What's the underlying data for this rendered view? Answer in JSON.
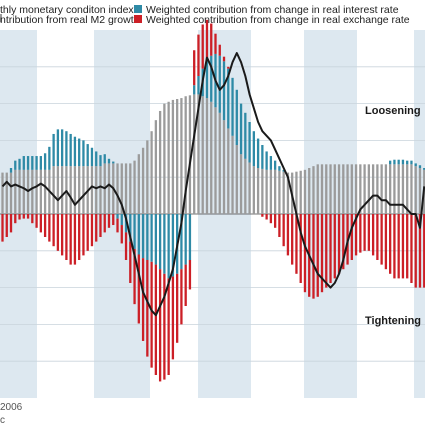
{
  "chart_data": {
    "type": "bar",
    "legend": [
      {
        "label": "thly monetary conditon index",
        "swatch": "line",
        "color": "#1a1a1a"
      },
      {
        "label": "ntribution from real M2 growth",
        "swatch": "box",
        "color": "#9b9b9b"
      },
      {
        "label": "Weighted contribution from change in real interest rate",
        "swatch": "box",
        "color": "#2e8aa6"
      },
      {
        "label": "Weighted contribution from change in real exchange rate",
        "swatch": "box",
        "color": "#cc1f26"
      }
    ],
    "annotations": {
      "loosening": "Loosening",
      "tightening": "Tightening"
    },
    "x_ticks": [
      "2006",
      "c"
    ],
    "bands_shaded": [
      true,
      false,
      true,
      false,
      true,
      false,
      true,
      false,
      true,
      false
    ],
    "ylim": [
      -16,
      18
    ],
    "grid": true,
    "colors": {
      "m2": "#9b9b9b",
      "interest": "#2e8aa6",
      "exchange": "#cc1f26",
      "index": "#1a1a1a",
      "band": "#dde8f0",
      "grid": "#c9d4dc"
    },
    "series": [
      {
        "key": "m2",
        "values": [
          4.5,
          4.5,
          4.5,
          4.8,
          4.8,
          4.8,
          4.8,
          4.8,
          4.8,
          4.8,
          4.8,
          4.8,
          5.2,
          5.2,
          5.2,
          5.2,
          5.2,
          5.2,
          5.2,
          5.2,
          5.2,
          5.2,
          5.2,
          5.2,
          5.5,
          5.5,
          5.5,
          5.5,
          5.5,
          5.5,
          5.5,
          5.8,
          6.5,
          7.2,
          8.0,
          9.0,
          10.2,
          11.2,
          12.0,
          12.2,
          12.4,
          12.5,
          12.6,
          12.8,
          12.9,
          13.0,
          13.0,
          12.8,
          12.6,
          12.2,
          11.6,
          11.0,
          10.2,
          9.3,
          8.5,
          7.5,
          6.5,
          6.0,
          5.6,
          5.2,
          5.0,
          4.9,
          4.8,
          4.8,
          4.8,
          4.7,
          4.6,
          4.5,
          4.5,
          4.6,
          4.7,
          4.8,
          5.0,
          5.2,
          5.4,
          5.4,
          5.4,
          5.4,
          5.4,
          5.4,
          5.4,
          5.4,
          5.4,
          5.4,
          5.4,
          5.4,
          5.4,
          5.4,
          5.4,
          5.4,
          5.4,
          5.4,
          5.4,
          5.4,
          5.4,
          5.4,
          5.4,
          5.2,
          5.0,
          4.8
        ]
      },
      {
        "key": "interest",
        "values": [
          0,
          0,
          0.5,
          1.0,
          1.2,
          1.5,
          1.5,
          1.5,
          1.5,
          1.5,
          1.8,
          2.5,
          3.5,
          4.0,
          4.0,
          3.8,
          3.5,
          3.2,
          3.0,
          2.8,
          2.4,
          2.0,
          1.6,
          1.2,
          1.0,
          0.5,
          0.2,
          -0.5,
          -1.2,
          -2.0,
          -3.0,
          -3.8,
          -4.4,
          -4.8,
          -5.0,
          -5.2,
          -5.5,
          -6.0,
          -6.5,
          -7.0,
          -6.8,
          -6.5,
          -6.0,
          -5.5,
          -5.0,
          1.0,
          2.0,
          3.0,
          4.0,
          5.0,
          5.8,
          6.2,
          6.4,
          6.5,
          6.3,
          6.0,
          5.5,
          5.0,
          4.4,
          3.8,
          3.2,
          2.6,
          2.0,
          1.5,
          1.0,
          0.5,
          0.2,
          0,
          0,
          0,
          0,
          0,
          0,
          0,
          0,
          0,
          0,
          0,
          0,
          0,
          0,
          0,
          0,
          0,
          0,
          0,
          0,
          0,
          0,
          0,
          0,
          0.4,
          0.5,
          0.5,
          0.5,
          0.4,
          0.4,
          0.3,
          0.3,
          0.2
        ]
      },
      {
        "key": "exchange",
        "values": [
          -3.0,
          -2.5,
          -2.0,
          -1.0,
          -0.6,
          -0.5,
          -0.5,
          -1.0,
          -1.5,
          -2.0,
          -2.5,
          -3.0,
          -3.5,
          -4.0,
          -4.5,
          -5.0,
          -5.5,
          -5.5,
          -5.0,
          -4.5,
          -4.0,
          -3.5,
          -3.0,
          -2.5,
          -2.0,
          -1.5,
          -1.2,
          -1.5,
          -2.0,
          -3.0,
          -4.5,
          -6.0,
          -7.5,
          -9.0,
          -10.5,
          -11.5,
          -12.0,
          -12.2,
          -11.5,
          -10.5,
          -9.0,
          -7.5,
          -6.0,
          -4.5,
          -3.2,
          3.8,
          4.5,
          4.8,
          4.5,
          3.5,
          2.2,
          1.2,
          0.5,
          0.2,
          0,
          0,
          0,
          0,
          0,
          0,
          0,
          -0.3,
          -0.6,
          -1.0,
          -1.5,
          -2.5,
          -3.5,
          -4.5,
          -5.5,
          -6.5,
          -7.5,
          -8.5,
          -9.0,
          -9.2,
          -9.0,
          -8.5,
          -8.0,
          -7.5,
          -7.0,
          -6.5,
          -6.0,
          -5.5,
          -5.0,
          -4.5,
          -4.2,
          -4.0,
          -4.0,
          -4.5,
          -5.0,
          -5.5,
          -6.0,
          -6.5,
          -7.0,
          -7.0,
          -7.0,
          -7.0,
          -7.5,
          -8.0,
          -8.0,
          -8.0
        ]
      },
      {
        "key": "index",
        "values": [
          3.0,
          3.5,
          3.0,
          3.2,
          3.0,
          2.8,
          2.5,
          2.8,
          3.0,
          3.3,
          3.0,
          2.5,
          2.0,
          1.5,
          2.0,
          2.5,
          1.8,
          1.0,
          1.5,
          2.0,
          2.5,
          3.0,
          2.8,
          3.0,
          2.8,
          3.2,
          2.8,
          2.0,
          1.0,
          -0.5,
          -2.5,
          -4.5,
          -6.5,
          -8.5,
          -9.5,
          -10.5,
          -11.0,
          -10.0,
          -9.0,
          -7.5,
          -6.0,
          -3.5,
          -1.0,
          2.5,
          5.5,
          8.5,
          11.5,
          14.5,
          17.0,
          16.0,
          14.5,
          13.5,
          14.0,
          15.0,
          16.5,
          17.5,
          16.5,
          15.0,
          13.0,
          11.5,
          10.0,
          9.0,
          8.5,
          8.0,
          7.0,
          6.0,
          5.0,
          4.0,
          2.0,
          0,
          -2.0,
          -3.5,
          -4.5,
          -5.5,
          -6.5,
          -7.0,
          -7.5,
          -8.0,
          -7.5,
          -6.5,
          -5.0,
          -3.0,
          -1.5,
          -0.5,
          0.5,
          1.0,
          1.5,
          2.0,
          2.0,
          1.5,
          1.5,
          1.0,
          1.0,
          1.0,
          1.0,
          0.5,
          0,
          0,
          -1.5,
          3.0
        ]
      }
    ]
  }
}
